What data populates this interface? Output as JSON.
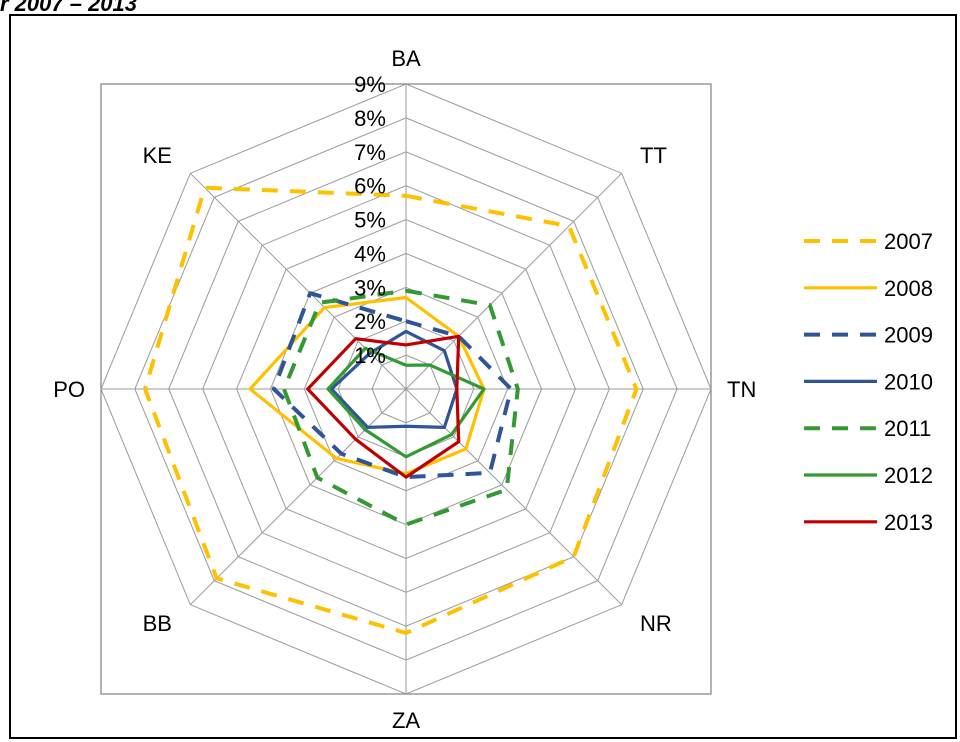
{
  "header": {
    "text": "r 2007 – 2013"
  },
  "chart_data": {
    "type": "radar",
    "title": "",
    "categories": [
      "BA",
      "TT",
      "TN",
      "NR",
      "ZA",
      "BB",
      "PO",
      "KE"
    ],
    "rlim": [
      0,
      9
    ],
    "tick_labels": [
      "1%",
      "2%",
      "3%",
      "4%",
      "5%",
      "6%",
      "7%",
      "8%",
      "9%"
    ],
    "legend_position": "right",
    "series": [
      {
        "name": "2007",
        "color": "#FFC000",
        "dash": "dashed",
        "values": [
          5.7,
          6.8,
          6.8,
          7.0,
          7.2,
          7.9,
          7.7,
          8.4
        ]
      },
      {
        "name": "2008",
        "color": "#FFC000",
        "dash": "solid",
        "values": [
          2.7,
          2.2,
          2.3,
          2.5,
          2.5,
          2.9,
          4.6,
          3.4
        ]
      },
      {
        "name": "2009",
        "color": "#2F5597",
        "dash": "dashed",
        "values": [
          2.0,
          2.2,
          3.1,
          3.5,
          2.6,
          2.7,
          3.9,
          4.0
        ]
      },
      {
        "name": "2010",
        "color": "#2F5597",
        "dash": "solid",
        "values": [
          1.7,
          1.6,
          1.5,
          1.6,
          1.1,
          1.6,
          2.2,
          1.5
        ]
      },
      {
        "name": "2011",
        "color": "#339933",
        "dash": "dashed",
        "values": [
          2.9,
          3.5,
          3.3,
          4.2,
          4.0,
          3.7,
          3.6,
          3.6
        ]
      },
      {
        "name": "2012",
        "color": "#339933",
        "dash": "solid",
        "values": [
          0.7,
          1.0,
          2.3,
          1.9,
          2.0,
          1.7,
          2.3,
          1.7
        ]
      },
      {
        "name": "2013",
        "color": "#C00000",
        "dash": "solid",
        "values": [
          1.3,
          2.2,
          1.5,
          2.2,
          2.6,
          2.1,
          2.9,
          2.1
        ]
      }
    ]
  }
}
